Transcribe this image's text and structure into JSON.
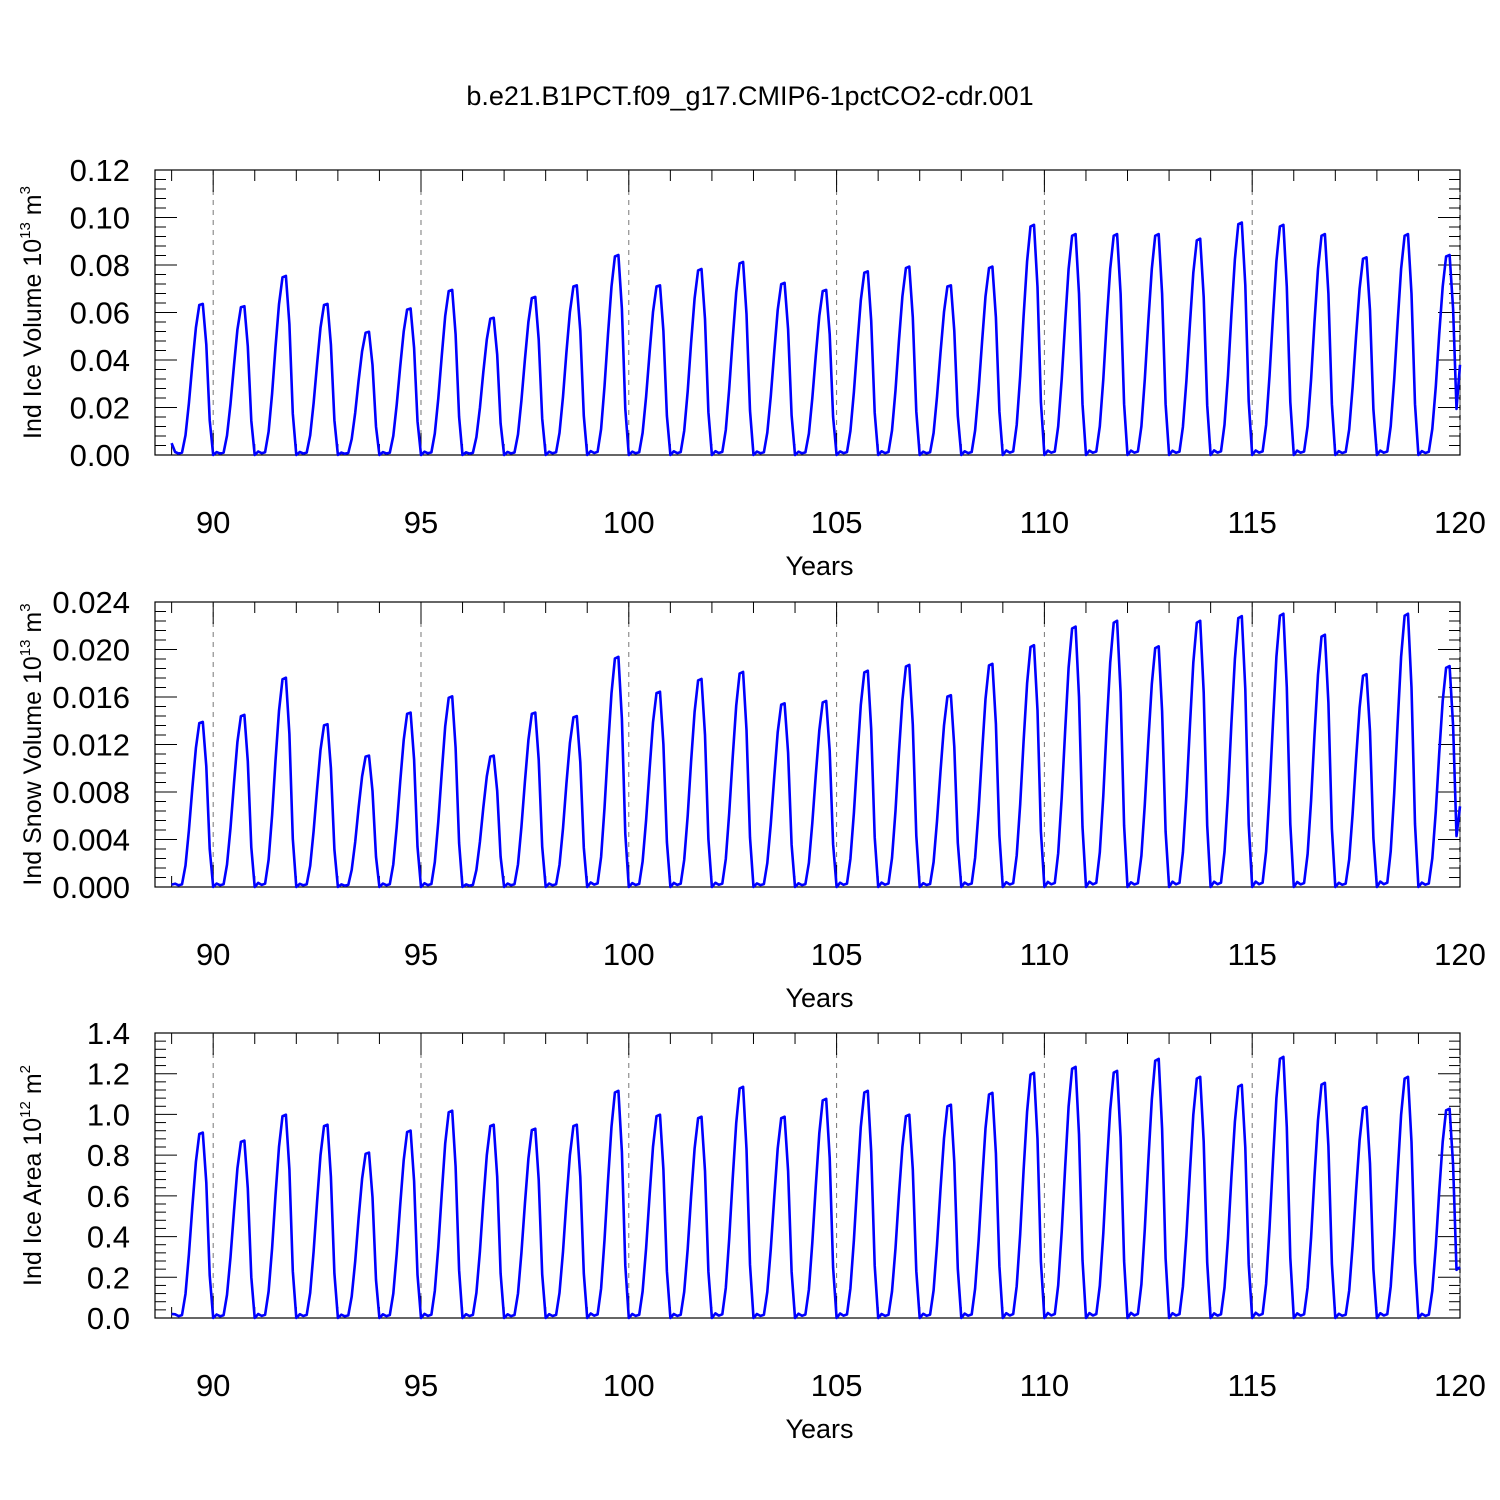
{
  "title": "b.e21.B1PCT.f09_g17.CMIP6-1pctCO2-cdr.001",
  "chart_data": [
    {
      "type": "line",
      "ylabel": {
        "pre": "Ind Ice Volume 10",
        "sup": "13",
        "mid": " m",
        "sup2": "3"
      },
      "xlabel": "Years",
      "xlim": [
        88.6,
        120
      ],
      "ylim": [
        0,
        0.12
      ],
      "xticks": [
        90,
        95,
        100,
        105,
        110,
        115,
        120
      ],
      "xtick_labels": [
        "90",
        "95",
        "100",
        "105",
        "110",
        "115",
        "120"
      ],
      "yticks": [
        0,
        0.02,
        0.04,
        0.06,
        0.08,
        0.1,
        0.12
      ],
      "ytick_labels": [
        "0.00",
        "0.02",
        "0.04",
        "0.06",
        "0.08",
        "0.10",
        "0.12"
      ],
      "grid": "dashed vertical at major x ticks",
      "color": "#0000ff",
      "series": [
        {
          "annual_peaks": [
            0.065,
            0.064,
            0.077,
            0.065,
            0.053,
            0.063,
            0.071,
            0.059,
            0.068,
            0.073,
            0.086,
            0.073,
            0.08,
            0.083,
            0.074,
            0.071,
            0.079,
            0.081,
            0.073,
            0.081,
            0.099,
            0.095,
            0.095,
            0.095,
            0.093,
            0.1,
            0.099,
            0.095,
            0.085,
            0.095,
            0.086
          ],
          "annual_minimum": 0.0,
          "x_start": 89.0,
          "y_start": 0.005,
          "y_end": 0.038
        }
      ]
    },
    {
      "type": "line",
      "ylabel": {
        "pre": "Ind Snow Volume 10",
        "sup": "13",
        "mid": " m",
        "sup2": "3"
      },
      "xlabel": "Years",
      "xlim": [
        88.6,
        120
      ],
      "ylim": [
        0,
        0.024
      ],
      "xticks": [
        90,
        95,
        100,
        105,
        110,
        115,
        120
      ],
      "xtick_labels": [
        "90",
        "95",
        "100",
        "105",
        "110",
        "115",
        "120"
      ],
      "yticks": [
        0,
        0.004,
        0.008,
        0.012,
        0.016,
        0.02,
        0.024
      ],
      "ytick_labels": [
        "0.000",
        "0.004",
        "0.008",
        "0.012",
        "0.016",
        "0.020",
        "0.024"
      ],
      "grid": "dashed vertical at major x ticks",
      "color": "#0000ff",
      "series": [
        {
          "annual_peaks": [
            0.0142,
            0.0148,
            0.018,
            0.014,
            0.0113,
            0.015,
            0.0164,
            0.0113,
            0.015,
            0.0147,
            0.0198,
            0.0168,
            0.0179,
            0.0185,
            0.0158,
            0.016,
            0.0186,
            0.0191,
            0.0165,
            0.0192,
            0.0208,
            0.0224,
            0.0229,
            0.0207,
            0.0229,
            0.0233,
            0.0235,
            0.0217,
            0.0183,
            0.0235,
            0.019
          ],
          "annual_minimum": 0.0,
          "x_start": 89.0,
          "y_start": 0.0002,
          "y_end": 0.0068
        }
      ]
    },
    {
      "type": "line",
      "ylabel": {
        "pre": "Ind Ice Area 10",
        "sup": "12",
        "mid": " m",
        "sup2": "2"
      },
      "xlabel": "Years",
      "xlim": [
        88.6,
        120
      ],
      "ylim": [
        0,
        1.4
      ],
      "xticks": [
        90,
        95,
        100,
        105,
        110,
        115,
        120
      ],
      "xtick_labels": [
        "90",
        "95",
        "100",
        "105",
        "110",
        "115",
        "120"
      ],
      "yticks": [
        0,
        0.2,
        0.4,
        0.6,
        0.8,
        1.0,
        1.2,
        1.4
      ],
      "ytick_labels": [
        "0.0",
        "0.2",
        "0.4",
        "0.6",
        "0.8",
        "1.0",
        "1.2",
        "1.4"
      ],
      "grid": "dashed vertical at major x ticks",
      "color": "#0000ff",
      "series": [
        {
          "annual_peaks": [
            0.93,
            0.89,
            1.02,
            0.97,
            0.83,
            0.94,
            1.04,
            0.97,
            0.95,
            0.97,
            1.14,
            1.02,
            1.01,
            1.16,
            1.01,
            1.1,
            1.14,
            1.02,
            1.07,
            1.13,
            1.23,
            1.26,
            1.24,
            1.3,
            1.21,
            1.17,
            1.31,
            1.18,
            1.06,
            1.21,
            1.05
          ],
          "annual_minimum": 0.0,
          "x_start": 89.0,
          "y_start": 0.02,
          "y_end": 0.25
        }
      ]
    }
  ]
}
